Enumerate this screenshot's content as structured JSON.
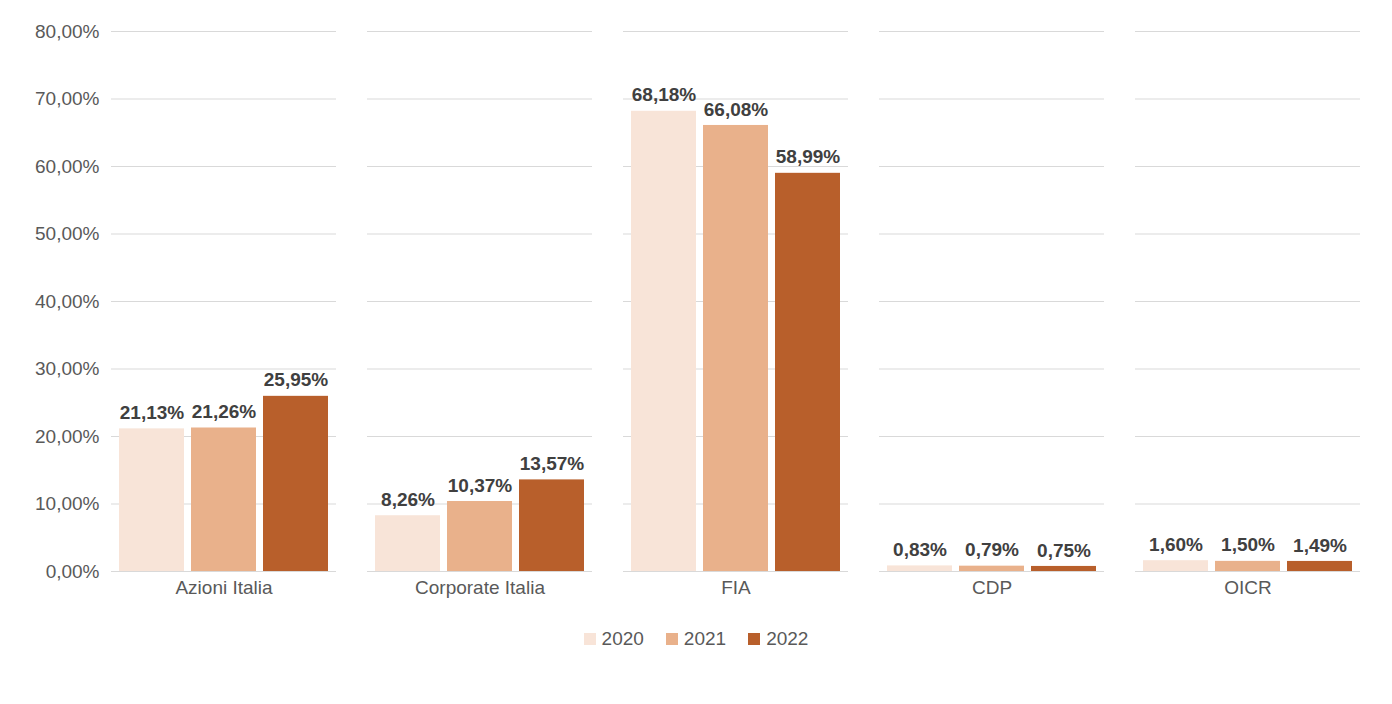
{
  "chart_data": {
    "type": "bar",
    "categories": [
      "Azioni Italia",
      "Corporate Italia",
      "FIA",
      "CDP",
      "OICR"
    ],
    "series": [
      {
        "name": "2020",
        "color": "#f8e4d8",
        "values": [
          21.13,
          8.26,
          68.18,
          0.83,
          1.6
        ],
        "value_labels": [
          "21,13%",
          "8,26%",
          "68,18%",
          "0,83%",
          "1,60%"
        ]
      },
      {
        "name": "2021",
        "color": "#e9b18b",
        "values": [
          21.26,
          10.37,
          66.08,
          0.79,
          1.5
        ],
        "value_labels": [
          "21,26%",
          "10,37%",
          "66,08%",
          "0,79%",
          "1,50%"
        ]
      },
      {
        "name": "2022",
        "color": "#b85f2b",
        "values": [
          25.95,
          13.57,
          58.99,
          0.75,
          1.49
        ],
        "value_labels": [
          "25,95%",
          "13,57%",
          "58,99%",
          "0,75%",
          "1,49%"
        ]
      }
    ],
    "ylim": [
      0,
      80
    ],
    "yticks": [
      {
        "value": 0,
        "label": "0,00%"
      },
      {
        "value": 10,
        "label": "10,00%"
      },
      {
        "value": 20,
        "label": "20,00%"
      },
      {
        "value": 30,
        "label": "30,00%"
      },
      {
        "value": 40,
        "label": "40,00%"
      },
      {
        "value": 50,
        "label": "50,00%"
      },
      {
        "value": 60,
        "label": "60,00%"
      },
      {
        "value": 70,
        "label": "70,00%"
      },
      {
        "value": 80,
        "label": "80,00%"
      }
    ],
    "grid": true,
    "legend": "bottom",
    "data_labels": true
  }
}
